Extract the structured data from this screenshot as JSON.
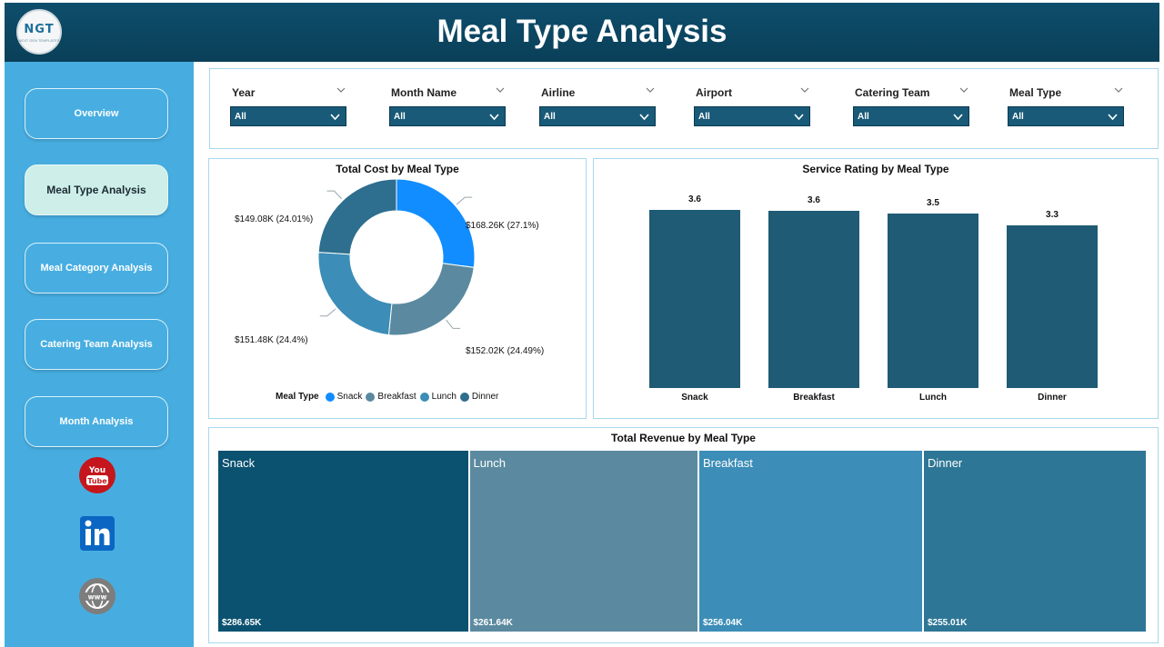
{
  "header": {
    "title": "Meal Type Analysis",
    "logo_text": "NGT",
    "logo_subtext": "NEXT GEN TEMPLATES"
  },
  "sidebar": {
    "items": [
      {
        "label": "Overview",
        "active": false
      },
      {
        "label": "Meal Type Analysis",
        "active": true
      },
      {
        "label": "Meal Category Analysis",
        "active": false
      },
      {
        "label": "Catering Team Analysis",
        "active": false
      },
      {
        "label": "Month Analysis",
        "active": false
      }
    ],
    "social": [
      {
        "icon": "youtube-icon",
        "color": "#c4161c"
      },
      {
        "icon": "linkedin-icon",
        "color": "#0a66c2"
      },
      {
        "icon": "website-globe-icon",
        "color": "#7d7d7d"
      }
    ]
  },
  "filters": [
    {
      "label": "Year",
      "value": "All"
    },
    {
      "label": "Month Name",
      "value": "All"
    },
    {
      "label": "Airline",
      "value": "All"
    },
    {
      "label": "Airport",
      "value": "All"
    },
    {
      "label": "Catering Team",
      "value": "All"
    },
    {
      "label": "Meal Type",
      "value": "All"
    }
  ],
  "colors": {
    "header": "#0e4e6c",
    "sidebar": "#47ade0",
    "snack": "#118dff",
    "breakfast": "#5b8aa0",
    "lunch": "#3c8db7",
    "dinner": "#2e6e8e",
    "bar": "#1f5b74"
  },
  "chart_data": [
    {
      "type": "pie",
      "title": "Total Cost by Meal Type",
      "legend_title": "Meal Type",
      "legend_position": "bottom",
      "categories": [
        "Snack",
        "Breakfast",
        "Lunch",
        "Dinner"
      ],
      "values": [
        168.26,
        152.02,
        151.48,
        149.08
      ],
      "unit": "$K",
      "data_labels": [
        "$168.26K (27.1%)",
        "$152.02K (24.49%)",
        "$151.48K (24.4%)",
        "$149.08K (24.01%)"
      ],
      "colors": [
        "#118dff",
        "#5b8aa0",
        "#3c8db7",
        "#2e6e8e"
      ]
    },
    {
      "type": "bar",
      "title": "Service Rating by Meal Type",
      "categories": [
        "Snack",
        "Breakfast",
        "Lunch",
        "Dinner"
      ],
      "values": [
        3.6,
        3.6,
        3.5,
        3.3
      ],
      "data_labels": [
        "3.6",
        "3.6",
        "3.5",
        "3.3"
      ],
      "exact_values": [
        3.62,
        3.61,
        3.55,
        3.32
      ],
      "ylim": [
        0,
        3.7
      ],
      "grid": false
    },
    {
      "type": "treemap",
      "title": "Total Revenue by Meal Type",
      "categories": [
        "Snack",
        "Lunch",
        "Breakfast",
        "Dinner"
      ],
      "values": [
        286.65,
        261.64,
        256.04,
        255.01
      ],
      "data_labels": [
        "$286.65K",
        "$261.64K",
        "$256.04K",
        "$255.01K"
      ],
      "unit": "$K",
      "colors": [
        "#0b5170",
        "#5b8aa0",
        "#3c8db7",
        "#2e7696"
      ]
    }
  ]
}
